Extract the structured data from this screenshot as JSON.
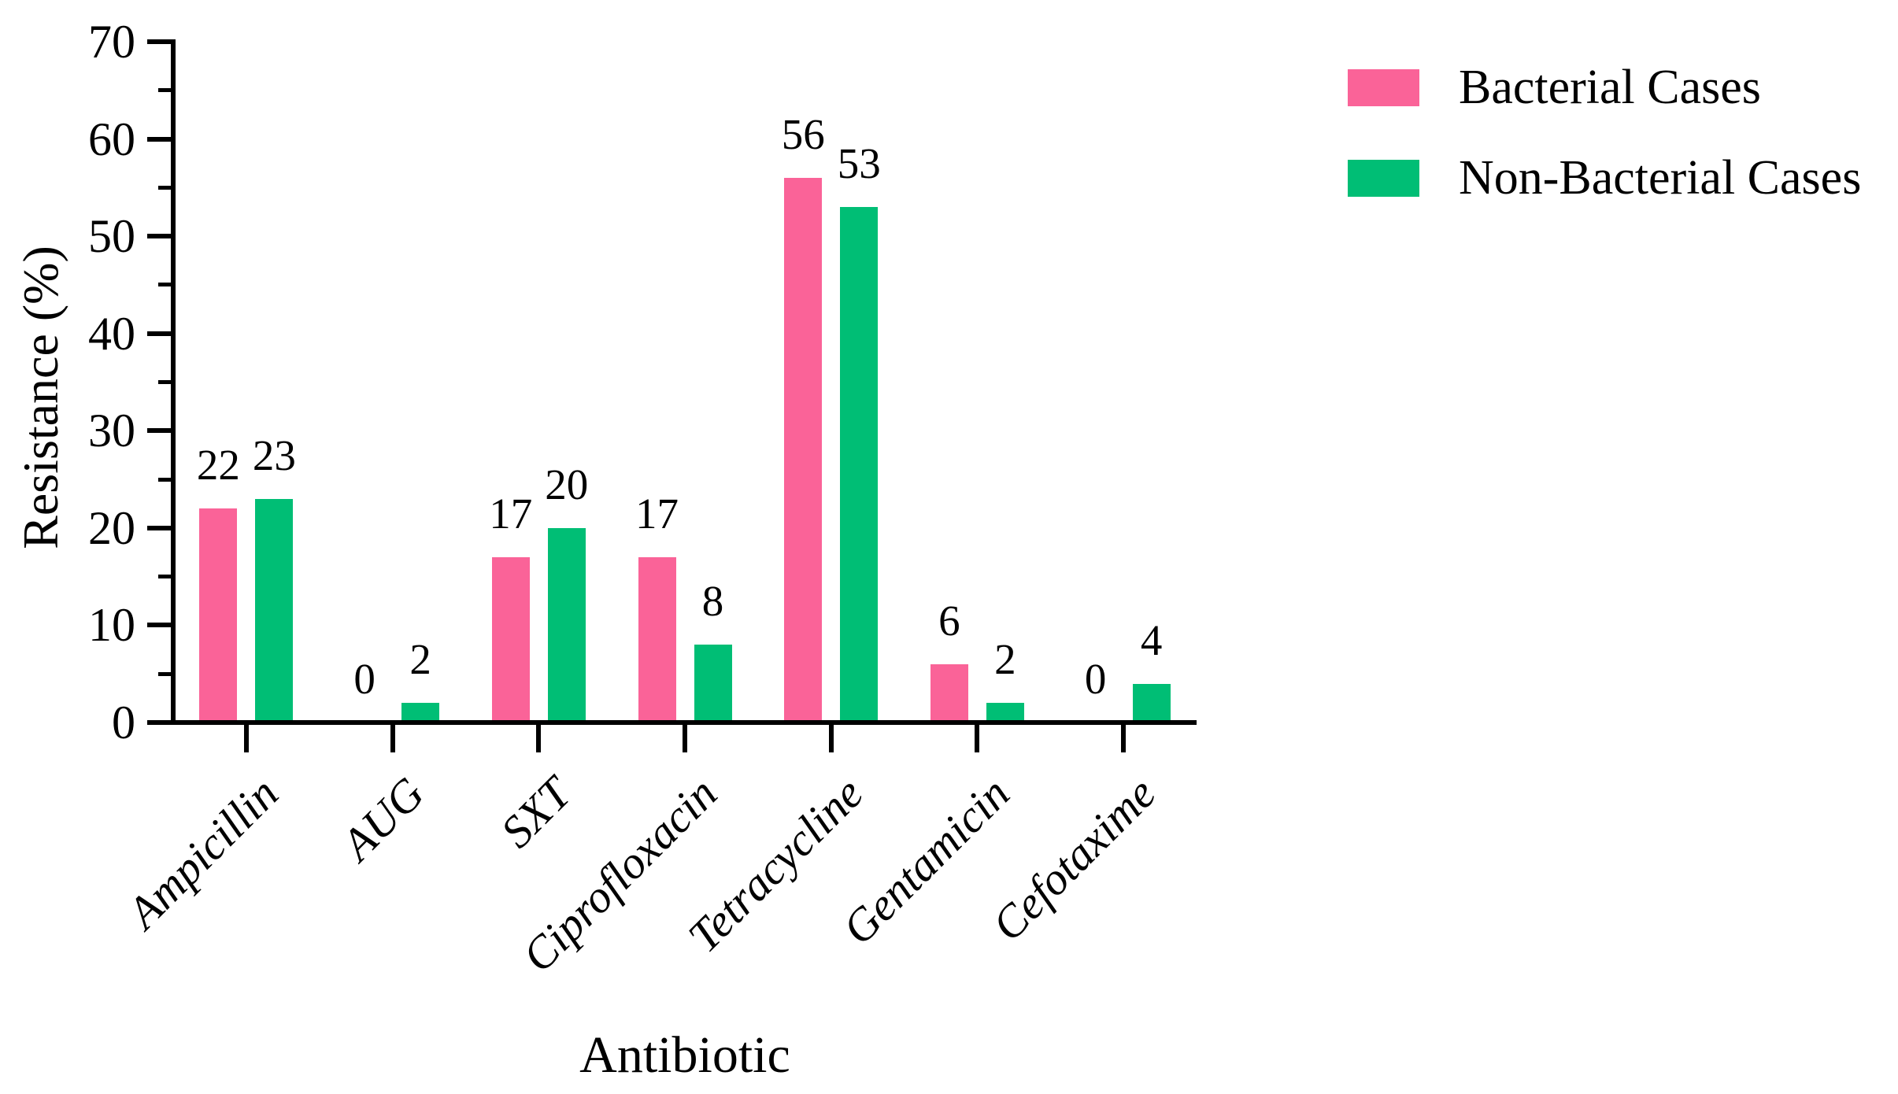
{
  "figure": {
    "background": "#FFFFFF"
  },
  "chart_data": {
    "type": "bar",
    "title": "",
    "xlabel": "Antibiotic",
    "ylabel": "Resistance (%)",
    "categories": [
      "Ampicillin",
      "AUG",
      "SXT",
      "Ciprofloxacin",
      "Tetracycline",
      "Gentamicin",
      "Cefotaxime"
    ],
    "series": [
      {
        "name": "Bacterial Cases",
        "color": "#FA6398",
        "values": [
          22,
          0,
          17,
          17,
          56,
          6,
          0
        ]
      },
      {
        "name": "Non-Bacterial Cases",
        "color": "#00BE75",
        "values": [
          23,
          2,
          20,
          8,
          53,
          2,
          4
        ]
      }
    ],
    "ylim": [
      0,
      70
    ],
    "ytick_interval": 10,
    "yminor_interval": 5,
    "ytick_labels": [
      "0",
      "10",
      "20",
      "30",
      "40",
      "50",
      "60",
      "70"
    ],
    "bar_value_labels": true,
    "legend": {
      "position": "top-right"
    },
    "grid": false,
    "axis_color": "#000000",
    "text_color": "#000000"
  }
}
